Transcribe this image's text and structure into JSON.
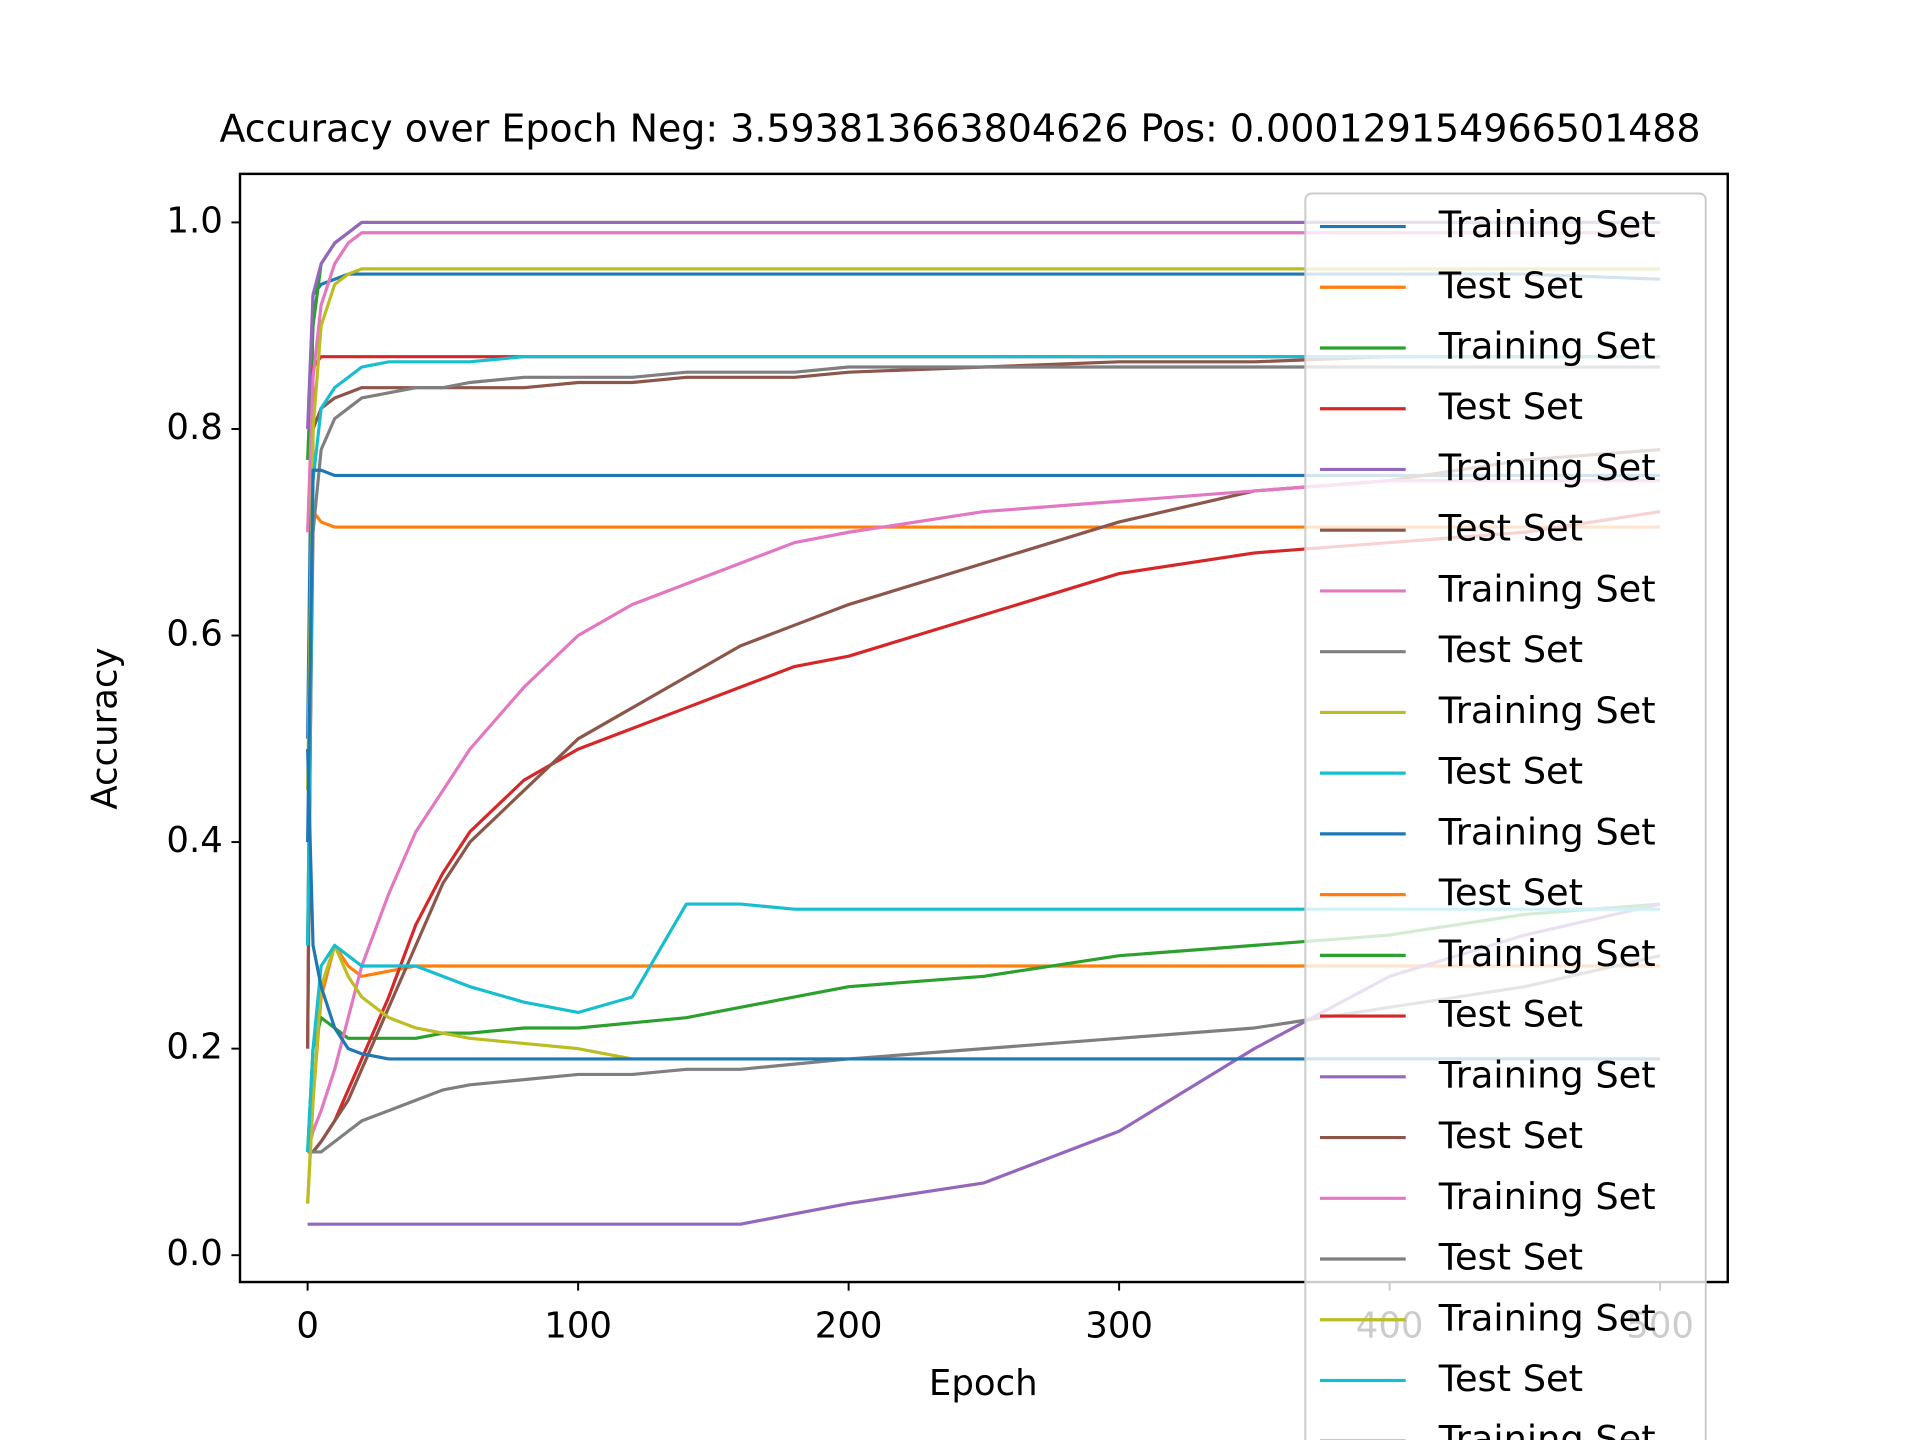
{
  "chart_data": {
    "type": "line",
    "title": "Accuracy over Epoch Neg: 3.593813663804626 Pos: 0.000129154966501488",
    "xlabel": "Epoch",
    "ylabel": "Accuracy",
    "xlim": [
      -25,
      525
    ],
    "ylim": [
      -0.026,
      1.047
    ],
    "xticks": [
      0,
      100,
      200,
      300,
      400,
      500
    ],
    "yticks": [
      {
        "value": 0,
        "label": "0.0"
      },
      0.2,
      0.4,
      0.6,
      0.8,
      {
        "value": 1,
        "label": "1.0"
      }
    ],
    "legend": "upper right",
    "x": [
      0,
      2,
      5,
      10,
      15,
      20,
      30,
      40,
      50,
      60,
      80,
      100,
      120,
      140,
      160,
      180,
      200,
      250,
      300,
      350,
      400,
      450,
      500
    ],
    "series": [
      {
        "name": "Training Set",
        "color": "#1f77b4",
        "values": [
          0.5,
          0.93,
          0.94,
          0.945,
          0.95,
          0.95,
          0.95,
          0.95,
          0.95,
          0.95,
          0.95,
          0.95,
          0.95,
          0.95,
          0.95,
          0.95,
          0.95,
          0.95,
          0.95,
          0.95,
          0.95,
          0.95,
          0.945
        ]
      },
      {
        "name": "Test Set",
        "color": "#ff7f0e",
        "values": [
          0.3,
          0.72,
          0.71,
          0.705,
          0.705,
          0.705,
          0.705,
          0.705,
          0.705,
          0.705,
          0.705,
          0.705,
          0.705,
          0.705,
          0.705,
          0.705,
          0.705,
          0.705,
          0.705,
          0.705,
          0.705,
          0.705,
          0.705
        ]
      },
      {
        "name": "Training Set",
        "color": "#2ca02c",
        "values": [
          0.77,
          0.9,
          0.96,
          0.98,
          0.99,
          1.0,
          1.0,
          1.0,
          1.0,
          1.0,
          1.0,
          1.0,
          1.0,
          1.0,
          1.0,
          1.0,
          1.0,
          1.0,
          1.0,
          1.0,
          1.0,
          1.0,
          1.0
        ]
      },
      {
        "name": "Test Set",
        "color": "#d62728",
        "values": [
          0.2,
          0.86,
          0.87,
          0.87,
          0.87,
          0.87,
          0.87,
          0.87,
          0.87,
          0.87,
          0.87,
          0.87,
          0.87,
          0.87,
          0.87,
          0.87,
          0.87,
          0.87,
          0.87,
          0.87,
          0.87,
          0.87,
          0.87
        ]
      },
      {
        "name": "Training Set",
        "color": "#9467bd",
        "values": [
          0.8,
          0.93,
          0.96,
          0.98,
          0.99,
          1.0,
          1.0,
          1.0,
          1.0,
          1.0,
          1.0,
          1.0,
          1.0,
          1.0,
          1.0,
          1.0,
          1.0,
          1.0,
          1.0,
          1.0,
          1.0,
          1.0,
          1.0
        ]
      },
      {
        "name": "Test Set",
        "color": "#8c564b",
        "values": [
          0.2,
          0.8,
          0.82,
          0.83,
          0.835,
          0.84,
          0.84,
          0.84,
          0.84,
          0.84,
          0.84,
          0.845,
          0.845,
          0.85,
          0.85,
          0.85,
          0.855,
          0.86,
          0.865,
          0.865,
          0.87,
          0.87,
          0.87
        ]
      },
      {
        "name": "Training Set",
        "color": "#e377c2",
        "values": [
          0.7,
          0.85,
          0.92,
          0.96,
          0.98,
          0.99,
          0.99,
          0.99,
          0.99,
          0.99,
          0.99,
          0.99,
          0.99,
          0.99,
          0.99,
          0.99,
          0.99,
          0.99,
          0.99,
          0.99,
          0.99,
          0.99,
          0.99
        ]
      },
      {
        "name": "Test Set",
        "color": "#7f7f7f",
        "values": [
          0.3,
          0.7,
          0.78,
          0.81,
          0.82,
          0.83,
          0.835,
          0.84,
          0.84,
          0.845,
          0.85,
          0.85,
          0.85,
          0.855,
          0.855,
          0.855,
          0.86,
          0.86,
          0.86,
          0.86,
          0.86,
          0.86,
          0.86
        ]
      },
      {
        "name": "Training Set",
        "color": "#bcbd22",
        "values": [
          0.45,
          0.8,
          0.9,
          0.94,
          0.95,
          0.955,
          0.955,
          0.955,
          0.955,
          0.955,
          0.955,
          0.955,
          0.955,
          0.955,
          0.955,
          0.955,
          0.955,
          0.955,
          0.955,
          0.955,
          0.955,
          0.955,
          0.955
        ]
      },
      {
        "name": "Test Set",
        "color": "#17becf",
        "values": [
          0.3,
          0.75,
          0.82,
          0.84,
          0.85,
          0.86,
          0.865,
          0.865,
          0.865,
          0.865,
          0.87,
          0.87,
          0.87,
          0.87,
          0.87,
          0.87,
          0.87,
          0.87,
          0.87,
          0.87,
          0.87,
          0.87,
          0.87
        ]
      },
      {
        "name": "Training Set",
        "color": "#1f77b4",
        "values": [
          0.4,
          0.76,
          0.76,
          0.755,
          0.755,
          0.755,
          0.755,
          0.755,
          0.755,
          0.755,
          0.755,
          0.755,
          0.755,
          0.755,
          0.755,
          0.755,
          0.755,
          0.755,
          0.755,
          0.755,
          0.755,
          0.755,
          0.755
        ]
      },
      {
        "name": "Test Set",
        "color": "#ff7f0e",
        "values": [
          0.05,
          0.15,
          0.25,
          0.3,
          0.28,
          0.27,
          0.275,
          0.28,
          0.28,
          0.28,
          0.28,
          0.28,
          0.28,
          0.28,
          0.28,
          0.28,
          0.28,
          0.28,
          0.28,
          0.28,
          0.28,
          0.28,
          0.28
        ]
      },
      {
        "name": "Training Set",
        "color": "#2ca02c",
        "values": [
          0.1,
          0.2,
          0.23,
          0.22,
          0.21,
          0.21,
          0.21,
          0.21,
          0.215,
          0.215,
          0.22,
          0.22,
          0.225,
          0.23,
          0.24,
          0.25,
          0.26,
          0.27,
          0.29,
          0.3,
          0.31,
          0.33,
          0.34
        ]
      },
      {
        "name": "Test Set",
        "color": "#d62728",
        "values": [
          0.1,
          0.1,
          0.11,
          0.13,
          0.16,
          0.19,
          0.25,
          0.32,
          0.37,
          0.41,
          0.46,
          0.49,
          0.51,
          0.53,
          0.55,
          0.57,
          0.58,
          0.62,
          0.66,
          0.68,
          0.69,
          0.7,
          0.72
        ]
      },
      {
        "name": "Training Set",
        "color": "#9467bd",
        "values": [
          0.03,
          0.03,
          0.03,
          0.03,
          0.03,
          0.03,
          0.03,
          0.03,
          0.03,
          0.03,
          0.03,
          0.03,
          0.03,
          0.03,
          0.03,
          0.04,
          0.05,
          0.07,
          0.12,
          0.2,
          0.27,
          0.31,
          0.34
        ]
      },
      {
        "name": "Test Set",
        "color": "#8c564b",
        "values": [
          0.1,
          0.1,
          0.11,
          0.13,
          0.15,
          0.18,
          0.24,
          0.3,
          0.36,
          0.4,
          0.45,
          0.5,
          0.53,
          0.56,
          0.59,
          0.61,
          0.63,
          0.67,
          0.71,
          0.74,
          0.75,
          0.77,
          0.78
        ]
      },
      {
        "name": "Training Set",
        "color": "#e377c2",
        "values": [
          0.1,
          0.12,
          0.14,
          0.18,
          0.23,
          0.28,
          0.35,
          0.41,
          0.45,
          0.49,
          0.55,
          0.6,
          0.63,
          0.65,
          0.67,
          0.69,
          0.7,
          0.72,
          0.73,
          0.74,
          0.75,
          0.75,
          0.75
        ]
      },
      {
        "name": "Test Set",
        "color": "#7f7f7f",
        "values": [
          0.1,
          0.1,
          0.1,
          0.11,
          0.12,
          0.13,
          0.14,
          0.15,
          0.16,
          0.165,
          0.17,
          0.175,
          0.175,
          0.18,
          0.18,
          0.185,
          0.19,
          0.2,
          0.21,
          0.22,
          0.24,
          0.26,
          0.29
        ]
      },
      {
        "name": "Training Set",
        "color": "#bcbd22",
        "values": [
          0.05,
          0.15,
          0.26,
          0.3,
          0.27,
          0.25,
          0.23,
          0.22,
          0.215,
          0.21,
          0.205,
          0.2,
          0.19,
          0.19,
          0.19,
          0.19,
          0.19,
          0.19,
          0.19,
          0.19,
          0.19,
          0.19,
          0.19
        ]
      },
      {
        "name": "Test Set",
        "color": "#17becf",
        "values": [
          0.1,
          0.2,
          0.28,
          0.3,
          0.29,
          0.28,
          0.28,
          0.28,
          0.27,
          0.26,
          0.245,
          0.235,
          0.25,
          0.34,
          0.34,
          0.335,
          0.335,
          0.335,
          0.335,
          0.335,
          0.335,
          0.335,
          0.335
        ]
      },
      {
        "name": "Training Set",
        "color": "#1f77b4",
        "values": [
          0.49,
          0.3,
          0.26,
          0.22,
          0.2,
          0.195,
          0.19,
          0.19,
          0.19,
          0.19,
          0.19,
          0.19,
          0.19,
          0.19,
          0.19,
          0.19,
          0.19,
          0.19,
          0.19,
          0.19,
          0.19,
          0.19,
          0.19
        ]
      }
    ]
  }
}
